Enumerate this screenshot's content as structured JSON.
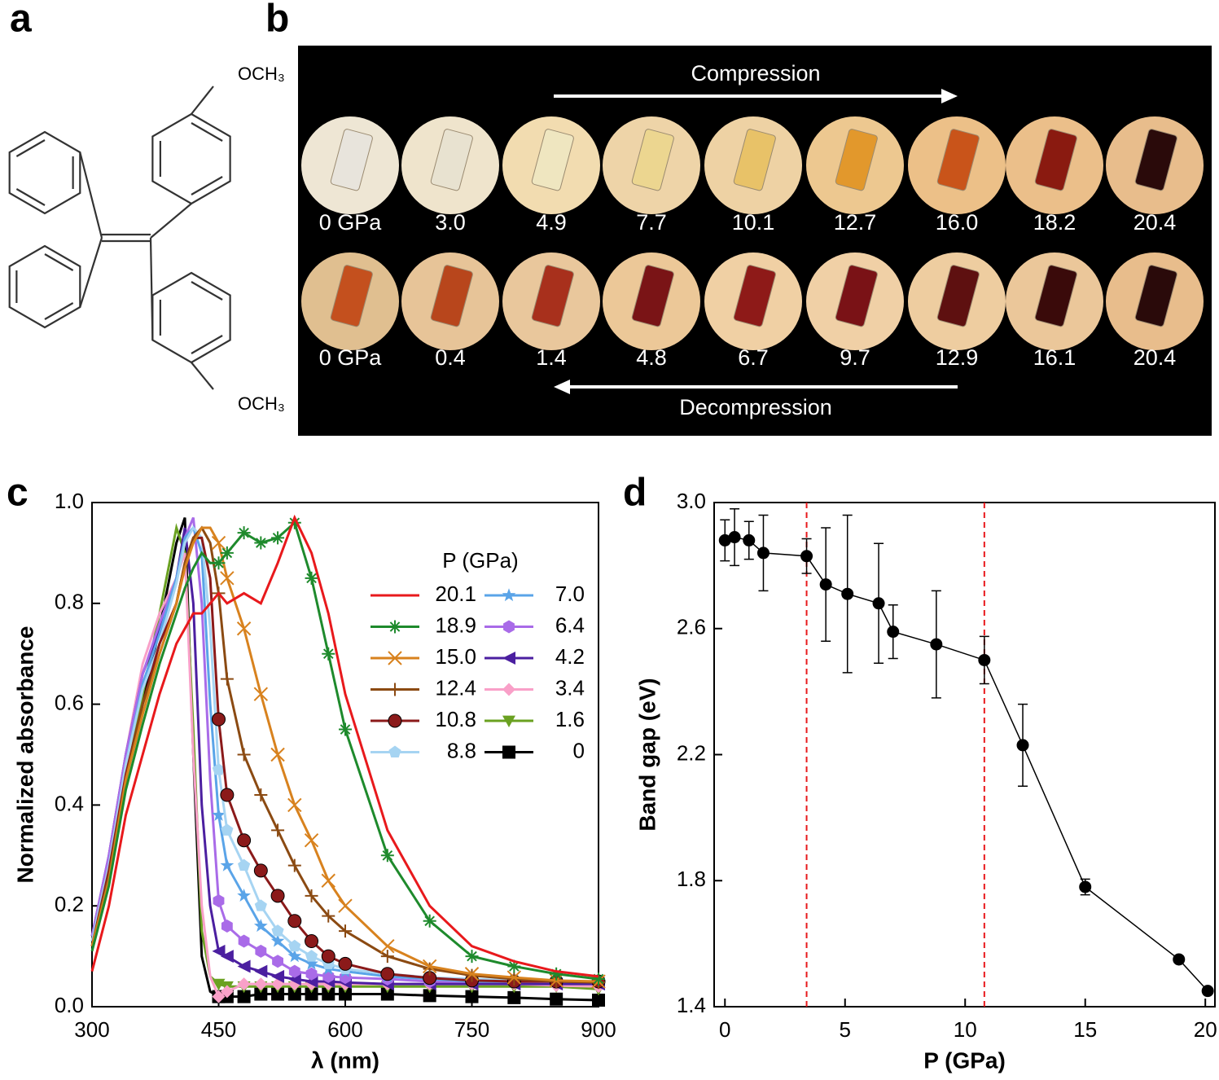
{
  "panel_labels": [
    "a",
    "b",
    "c",
    "d"
  ],
  "molecule": {
    "substituents": [
      "OCH₃",
      "OCH₃"
    ]
  },
  "photos": {
    "compression_label": "Compression",
    "compression_pressures": [
      "0 GPa",
      "3.0",
      "4.9",
      "7.7",
      "10.1",
      "12.7",
      "16.0",
      "18.2",
      "20.4"
    ],
    "decompression_label": "Decompression",
    "decompression_pressures": [
      "0 GPa",
      "0.4",
      "1.4",
      "4.8",
      "6.7",
      "9.7",
      "12.9",
      "16.1",
      "20.4"
    ]
  },
  "chart_data": [
    {
      "type": "line",
      "xlabel": "λ (nm)",
      "ylabel": "Normalized absorbance",
      "legend_title": "P (GPa)",
      "x": [
        300,
        320,
        340,
        360,
        380,
        400,
        410,
        420,
        430,
        440,
        450,
        460,
        480,
        500,
        520,
        540,
        560,
        580,
        600,
        650,
        700,
        750,
        800,
        850,
        900
      ],
      "xlim": [
        300,
        900
      ],
      "xticks": [
        300,
        450,
        600,
        750,
        900
      ],
      "ylim": [
        0,
        1
      ],
      "yticks": [
        {
          "value": 0,
          "label": "0.0"
        },
        0.2,
        0.4,
        0.6,
        0.8,
        {
          "value": 1,
          "label": "1.0"
        }
      ],
      "series": [
        {
          "name": "20.1",
          "color": "#e8191c",
          "values": [
            0.07,
            0.2,
            0.38,
            0.5,
            0.62,
            0.72,
            0.75,
            0.78,
            0.78,
            0.8,
            0.82,
            0.8,
            0.82,
            0.8,
            0.88,
            0.97,
            0.9,
            0.78,
            0.62,
            0.35,
            0.2,
            0.12,
            0.09,
            0.07,
            0.06
          ]
        },
        {
          "name": "18.9",
          "color": "#1e8a2c",
          "marker": "asterisk",
          "values": [
            0.11,
            0.24,
            0.43,
            0.56,
            0.68,
            0.78,
            0.83,
            0.87,
            0.9,
            0.88,
            0.88,
            0.9,
            0.94,
            0.92,
            0.93,
            0.96,
            0.85,
            0.7,
            0.55,
            0.3,
            0.17,
            0.1,
            0.08,
            0.065,
            0.055
          ]
        },
        {
          "name": "15.0",
          "color": "#d8821e",
          "marker": "x",
          "values": [
            0.12,
            0.25,
            0.45,
            0.58,
            0.7,
            0.8,
            0.87,
            0.92,
            0.95,
            0.95,
            0.92,
            0.85,
            0.75,
            0.62,
            0.5,
            0.4,
            0.33,
            0.25,
            0.2,
            0.12,
            0.08,
            0.065,
            0.058,
            0.052,
            0.05
          ]
        },
        {
          "name": "12.4",
          "color": "#8b4a12",
          "marker": "plus",
          "values": [
            0.12,
            0.26,
            0.45,
            0.6,
            0.7,
            0.8,
            0.88,
            0.93,
            0.95,
            0.92,
            0.82,
            0.65,
            0.5,
            0.42,
            0.35,
            0.28,
            0.22,
            0.18,
            0.15,
            0.1,
            0.075,
            0.062,
            0.055,
            0.05,
            0.048
          ]
        },
        {
          "name": "10.8",
          "color": "#8b1a1a",
          "marker": "circle",
          "values": [
            0.12,
            0.27,
            0.46,
            0.6,
            0.72,
            0.8,
            0.88,
            0.93,
            0.93,
            0.85,
            0.57,
            0.42,
            0.33,
            0.27,
            0.22,
            0.17,
            0.13,
            0.1,
            0.085,
            0.065,
            0.057,
            0.052,
            0.05,
            0.05,
            0.05
          ]
        },
        {
          "name": "8.8",
          "color": "#a6d4f2",
          "marker": "pentagon",
          "values": [
            0.13,
            0.28,
            0.48,
            0.63,
            0.72,
            0.84,
            0.92,
            0.95,
            0.93,
            0.75,
            0.47,
            0.35,
            0.28,
            0.2,
            0.15,
            0.12,
            0.1,
            0.085,
            0.075,
            0.065,
            0.058,
            0.055,
            0.052,
            0.05,
            0.05
          ]
        },
        {
          "name": "7.0",
          "color": "#5aa4e8",
          "marker": "star",
          "values": [
            0.13,
            0.28,
            0.48,
            0.64,
            0.74,
            0.85,
            0.93,
            0.95,
            0.9,
            0.6,
            0.38,
            0.28,
            0.22,
            0.16,
            0.13,
            0.1,
            0.085,
            0.075,
            0.07,
            0.06,
            0.055,
            0.05,
            0.05,
            0.05,
            0.05
          ]
        },
        {
          "name": "6.4",
          "color": "#a96be8",
          "marker": "hexagon",
          "values": [
            0.14,
            0.3,
            0.5,
            0.66,
            0.76,
            0.85,
            0.93,
            0.97,
            0.8,
            0.45,
            0.21,
            0.16,
            0.13,
            0.11,
            0.09,
            0.07,
            0.065,
            0.06,
            0.058,
            0.055,
            0.05,
            0.05,
            0.05,
            0.05,
            0.05
          ]
        },
        {
          "name": "4.2",
          "color": "#4b1fa0",
          "marker": "triangle-left",
          "values": [
            0.14,
            0.3,
            0.5,
            0.66,
            0.75,
            0.85,
            0.95,
            0.8,
            0.4,
            0.2,
            0.11,
            0.1,
            0.08,
            0.07,
            0.06,
            0.055,
            0.05,
            0.05,
            0.048,
            0.045,
            0.045,
            0.045,
            0.045,
            0.045,
            0.045
          ]
        },
        {
          "name": "3.4",
          "color": "#f9a0c8",
          "marker": "diamond",
          "values": [
            0.13,
            0.27,
            0.5,
            0.68,
            0.78,
            0.85,
            0.9,
            0.5,
            0.2,
            0.06,
            0.02,
            0.03,
            0.045,
            0.045,
            0.045,
            0.045,
            0.045,
            0.045,
            0.045,
            0.045,
            0.045,
            0.045,
            0.045,
            0.042,
            0.04
          ]
        },
        {
          "name": "1.6",
          "color": "#6aa121",
          "marker": "triangle-down",
          "values": [
            0.12,
            0.26,
            0.45,
            0.62,
            0.78,
            0.95,
            0.9,
            0.55,
            0.15,
            0.06,
            0.045,
            0.04,
            0.04,
            0.04,
            0.04,
            0.04,
            0.04,
            0.04,
            0.04,
            0.04,
            0.04,
            0.04,
            0.04,
            0.04,
            0.035
          ]
        },
        {
          "name": "0",
          "color": "#000000",
          "marker": "square",
          "values": [
            0.12,
            0.25,
            0.45,
            0.6,
            0.75,
            0.92,
            0.97,
            0.5,
            0.1,
            0.03,
            0.02,
            0.02,
            0.02,
            0.025,
            0.025,
            0.025,
            0.025,
            0.025,
            0.025,
            0.025,
            0.022,
            0.02,
            0.018,
            0.015,
            0.013
          ]
        }
      ]
    },
    {
      "type": "line",
      "xlabel": "P (GPa)",
      "ylabel": "Band gap (eV)",
      "x": [
        0,
        0.4,
        1.0,
        1.6,
        3.4,
        4.2,
        5.1,
        6.4,
        7.0,
        8.8,
        10.8,
        12.4,
        15.0,
        18.9,
        20.1
      ],
      "xlim": [
        -0.45,
        20.4
      ],
      "xticks": [
        0,
        5,
        10,
        15,
        20
      ],
      "ylim": [
        1.4,
        3.0
      ],
      "yticks": [
        1.4,
        1.8,
        2.2,
        2.6,
        {
          "value": 3,
          "label": "3.0"
        }
      ],
      "vlines": [
        3.4,
        10.8
      ],
      "vline_color": "#e8191c",
      "series": [
        {
          "color": "#000000",
          "marker": "circle",
          "values": [
            2.88,
            2.89,
            2.88,
            2.84,
            2.83,
            2.74,
            2.71,
            2.68,
            2.59,
            2.55,
            2.5,
            2.23,
            1.78,
            1.55,
            1.45
          ],
          "errors": [
            0.065,
            0.09,
            0.06,
            0.12,
            0.055,
            0.18,
            0.25,
            0.19,
            0.085,
            0.17,
            0.075,
            0.13,
            0.025,
            0.01,
            0.01
          ]
        }
      ]
    }
  ]
}
